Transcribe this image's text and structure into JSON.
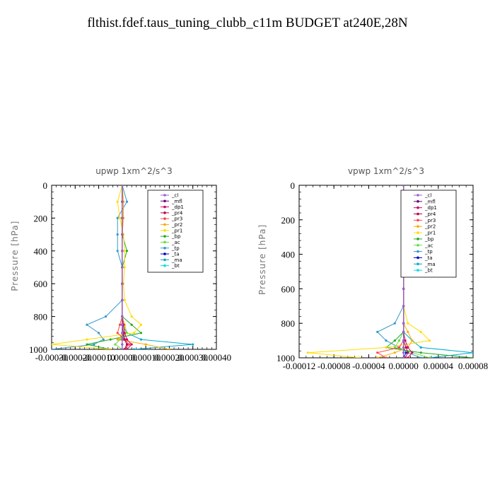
{
  "title": "flthist.fdef.taus_tuning_clubb_c11m  BUDGET at240E,28N",
  "chart_data": [
    {
      "type": "line",
      "title": "upwp   1xm^2/s^3",
      "ylabel": "Pressure [hPa]",
      "xlim": [
        -0.0003,
        0.0004
      ],
      "ylim": [
        1000,
        0
      ],
      "xticks": [
        -0.0003,
        -0.0002,
        -0.0001,
        0.0,
        0.0001,
        0.0002,
        0.0003,
        0.0004
      ],
      "xtick_labels": [
        "-0.00030",
        "-0.00020",
        "-0.00010",
        "0.00000",
        "0.00010",
        "0.00020",
        "0.00030",
        "0.00040"
      ],
      "yticks": [
        0,
        200,
        400,
        600,
        800,
        1000
      ],
      "ytick_labels": [
        "0",
        "200",
        "400",
        "600",
        "800",
        "1000"
      ],
      "legend_position": "top-right",
      "series": [
        {
          "name": "_cl",
          "color": "#9966cc",
          "x": [
            0,
            0,
            0,
            0,
            0,
            0,
            0,
            0,
            0,
            0,
            0,
            0,
            0,
            0
          ],
          "y": [
            0,
            100,
            200,
            300,
            400,
            500,
            600,
            700,
            800,
            850,
            900,
            940,
            970,
            1000
          ]
        },
        {
          "name": "_mfl",
          "color": "#6a0080",
          "x": [
            0,
            0,
            0,
            0,
            0,
            0,
            0,
            0,
            0,
            0,
            0,
            0,
            0,
            0
          ],
          "y": [
            0,
            100,
            200,
            300,
            400,
            500,
            600,
            700,
            800,
            850,
            900,
            940,
            970,
            1000
          ]
        },
        {
          "name": "_dp1",
          "color": "#cc0066",
          "x": [
            0,
            0,
            0,
            0,
            0,
            0,
            0,
            0,
            0,
            5e-06,
            1e-05,
            2e-05,
            4e-05,
            2e-05
          ],
          "y": [
            0,
            100,
            200,
            300,
            400,
            500,
            600,
            700,
            800,
            850,
            900,
            940,
            970,
            1000
          ]
        },
        {
          "name": "_pr4",
          "color": "#b8004a",
          "x": [
            0,
            0,
            0,
            0,
            0,
            0,
            0,
            0,
            0,
            0,
            5e-06,
            1e-05,
            2e-05,
            1e-05
          ],
          "y": [
            0,
            100,
            200,
            300,
            400,
            500,
            600,
            700,
            800,
            850,
            900,
            940,
            970,
            1000
          ]
        },
        {
          "name": "_pr3",
          "color": "#ff4444",
          "x": [
            0,
            0,
            0,
            0,
            0,
            0,
            0,
            0,
            0,
            -1e-05,
            -2e-05,
            1e-05,
            3e-05,
            1e-05
          ],
          "y": [
            0,
            100,
            200,
            300,
            400,
            500,
            600,
            700,
            800,
            850,
            900,
            940,
            970,
            1000
          ]
        },
        {
          "name": "_pr2",
          "color": "#ffaa00",
          "x": [
            0,
            5e-06,
            5e-06,
            0,
            0,
            0,
            0,
            0,
            0,
            1e-05,
            1e-05,
            -2e-05,
            0.0001,
            0.0002
          ],
          "y": [
            0,
            100,
            200,
            300,
            400,
            500,
            600,
            700,
            800,
            850,
            900,
            940,
            970,
            1000
          ]
        },
        {
          "name": "_pr1",
          "color": "#ffdd00",
          "x": [
            0,
            -2e-05,
            -1e-05,
            5e-06,
            1e-05,
            1e-05,
            5e-06,
            1e-05,
            4e-05,
            8e-05,
            5e-05,
            -0.00015,
            -0.0003,
            -5e-05
          ],
          "y": [
            0,
            100,
            200,
            300,
            400,
            500,
            600,
            700,
            800,
            850,
            900,
            940,
            970,
            1000
          ]
        },
        {
          "name": "_bp",
          "color": "#22aa22",
          "x": [
            0,
            0,
            0,
            0,
            2e-05,
            0,
            0,
            0,
            0,
            4e-05,
            8e-05,
            -5e-05,
            -0.00015,
            -5e-05
          ],
          "y": [
            0,
            100,
            200,
            300,
            400,
            500,
            600,
            700,
            800,
            850,
            900,
            940,
            970,
            1000
          ]
        },
        {
          "name": "_ac",
          "color": "#66dd44",
          "x": [
            0,
            0,
            0,
            0,
            0,
            0,
            0,
            0,
            0,
            1e-05,
            2e-05,
            -1e-05,
            -3e-05,
            0
          ],
          "y": [
            0,
            100,
            200,
            300,
            400,
            500,
            600,
            700,
            800,
            850,
            900,
            940,
            970,
            1000
          ]
        },
        {
          "name": "_tp",
          "color": "#3399cc",
          "x": [
            0,
            2e-05,
            -2e-05,
            -2e-05,
            -2e-05,
            0,
            0,
            0,
            -7e-05,
            -0.00015,
            -0.0001,
            -8e-05,
            -0.00012,
            -0.0003
          ],
          "y": [
            0,
            100,
            200,
            300,
            400,
            500,
            600,
            700,
            800,
            850,
            900,
            940,
            970,
            1000
          ]
        },
        {
          "name": "_ta",
          "color": "#0000cc",
          "x": [
            0,
            0,
            0,
            0,
            0,
            0,
            0,
            0,
            0,
            0,
            0,
            1e-05,
            2e-05,
            1e-05
          ],
          "y": [
            0,
            100,
            200,
            300,
            400,
            500,
            600,
            700,
            800,
            850,
            900,
            940,
            970,
            1000
          ]
        },
        {
          "name": "_ma",
          "color": "#00aacc",
          "x": [
            0,
            0,
            0,
            0,
            0,
            0,
            0,
            0,
            0,
            0,
            2e-05,
            8e-05,
            0.0003,
            5e-05
          ],
          "y": [
            0,
            100,
            200,
            300,
            400,
            500,
            600,
            700,
            800,
            850,
            900,
            940,
            970,
            1000
          ]
        },
        {
          "name": "_bt",
          "color": "#00dddd",
          "x": [
            0,
            0,
            0,
            0,
            0,
            0,
            0,
            0,
            0,
            0,
            0,
            0,
            0,
            0
          ],
          "y": [
            0,
            100,
            200,
            300,
            400,
            500,
            600,
            700,
            800,
            850,
            900,
            940,
            970,
            1000
          ]
        }
      ]
    },
    {
      "type": "line",
      "title": "vpwp   1xm^2/s^3",
      "ylabel": "Pressure [hPa]",
      "xlim": [
        -0.00012,
        8e-05
      ],
      "ylim": [
        1000,
        0
      ],
      "xticks": [
        -0.00012,
        -8e-05,
        -4e-05,
        0.0,
        4e-05,
        8e-05
      ],
      "xtick_labels": [
        "-0.00012",
        "-0.00008",
        "-0.00004",
        "0.00000",
        "0.00004",
        "0.00008"
      ],
      "yticks": [
        0,
        200,
        400,
        600,
        800,
        1000
      ],
      "ytick_labels": [
        "0",
        "200",
        "400",
        "600",
        "800",
        "1000"
      ],
      "legend_position": "top-right",
      "series": [
        {
          "name": "_cl",
          "color": "#9966cc",
          "x": [
            0,
            0,
            0,
            0,
            0,
            0,
            0,
            0,
            0,
            0,
            0,
            0,
            0,
            0
          ],
          "y": [
            0,
            100,
            200,
            300,
            400,
            500,
            600,
            700,
            800,
            850,
            900,
            940,
            970,
            1000
          ]
        },
        {
          "name": "_mfl",
          "color": "#6a0080",
          "x": [
            0,
            0,
            0,
            0,
            0,
            0,
            0,
            0,
            0,
            0,
            0,
            0,
            0,
            0
          ],
          "y": [
            0,
            100,
            200,
            300,
            400,
            500,
            600,
            700,
            800,
            850,
            900,
            940,
            970,
            1000
          ]
        },
        {
          "name": "_dp1",
          "color": "#cc0066",
          "x": [
            0,
            0,
            0,
            0,
            0,
            0,
            0,
            0,
            0,
            0,
            2e-06,
            5e-06,
            1e-05,
            5e-06
          ],
          "y": [
            0,
            100,
            200,
            300,
            400,
            500,
            600,
            700,
            800,
            850,
            900,
            940,
            970,
            1000
          ]
        },
        {
          "name": "_pr4",
          "color": "#b8004a",
          "x": [
            0,
            0,
            0,
            0,
            0,
            0,
            0,
            0,
            0,
            0,
            0,
            3e-06,
            5e-06,
            2e-06
          ],
          "y": [
            0,
            100,
            200,
            300,
            400,
            500,
            600,
            700,
            800,
            850,
            900,
            940,
            970,
            1000
          ]
        },
        {
          "name": "_pr3",
          "color": "#ff4444",
          "x": [
            0,
            0,
            0,
            0,
            0,
            0,
            0,
            0,
            0,
            0,
            0,
            -5e-06,
            -3e-05,
            -2e-05
          ],
          "y": [
            0,
            100,
            200,
            300,
            400,
            500,
            600,
            700,
            800,
            850,
            900,
            940,
            970,
            1000
          ]
        },
        {
          "name": "_pr2",
          "color": "#ffaa00",
          "x": [
            0,
            0,
            0,
            0,
            0,
            0,
            0,
            0,
            0,
            5e-06,
            1e-05,
            5e-06,
            -1e-05,
            -3e-05
          ],
          "y": [
            0,
            100,
            200,
            300,
            400,
            500,
            600,
            700,
            800,
            850,
            900,
            940,
            970,
            1000
          ]
        },
        {
          "name": "_pr1",
          "color": "#ffdd00",
          "x": [
            0,
            0,
            0,
            0,
            0,
            0,
            0,
            0,
            5e-06,
            2e-05,
            3e-05,
            -2e-05,
            -0.00011,
            -5e-05
          ],
          "y": [
            0,
            100,
            200,
            300,
            400,
            500,
            600,
            700,
            800,
            850,
            900,
            940,
            970,
            1000
          ]
        },
        {
          "name": "_bp",
          "color": "#22aa22",
          "x": [
            0,
            0,
            0,
            0,
            0,
            0,
            0,
            0,
            0,
            0,
            -1e-05,
            -2e-05,
            2e-05,
            8e-05
          ],
          "y": [
            0,
            100,
            200,
            300,
            400,
            500,
            600,
            700,
            800,
            850,
            900,
            940,
            970,
            1000
          ]
        },
        {
          "name": "_ac",
          "color": "#66dd44",
          "x": [
            0,
            0,
            0,
            0,
            0,
            0,
            0,
            0,
            0,
            0,
            -5e-06,
            -1e-05,
            1e-05,
            3e-05
          ],
          "y": [
            0,
            100,
            200,
            300,
            400,
            500,
            600,
            700,
            800,
            850,
            900,
            940,
            970,
            1000
          ]
        },
        {
          "name": "_tp",
          "color": "#3399cc",
          "x": [
            0,
            0,
            0,
            0,
            0,
            0,
            0,
            0,
            -1e-05,
            -3e-05,
            -2e-05,
            -5e-06,
            5e-06,
            2e-05
          ],
          "y": [
            0,
            100,
            200,
            300,
            400,
            500,
            600,
            700,
            800,
            850,
            900,
            940,
            970,
            1000
          ]
        },
        {
          "name": "_ta",
          "color": "#0000cc",
          "x": [
            0,
            0,
            0,
            0,
            0,
            0,
            0,
            0,
            0,
            0,
            0,
            0,
            3e-06,
            0
          ],
          "y": [
            0,
            100,
            200,
            300,
            400,
            500,
            600,
            700,
            800,
            850,
            900,
            940,
            970,
            1000
          ]
        },
        {
          "name": "_ma",
          "color": "#00aacc",
          "x": [
            0,
            0,
            0,
            0,
            0,
            0,
            0,
            0,
            0,
            0,
            1e-05,
            2e-05,
            8e-05,
            3e-05
          ],
          "y": [
            0,
            100,
            200,
            300,
            400,
            500,
            600,
            700,
            800,
            850,
            900,
            940,
            970,
            1000
          ]
        },
        {
          "name": "_bt",
          "color": "#00dddd",
          "x": [
            0,
            0,
            0,
            0,
            0,
            0,
            0,
            0,
            0,
            0,
            0,
            0,
            0,
            0
          ],
          "y": [
            0,
            100,
            200,
            300,
            400,
            500,
            600,
            700,
            800,
            850,
            900,
            940,
            970,
            1000
          ]
        }
      ]
    }
  ]
}
